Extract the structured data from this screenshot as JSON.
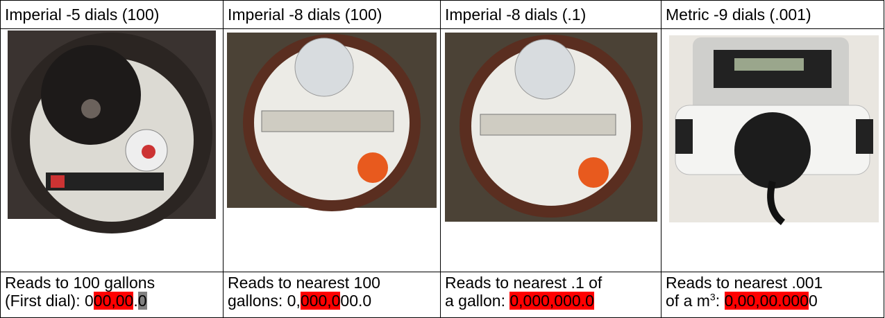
{
  "table": {
    "header": [
      "Imperial -5 dials (100)",
      "Imperial -8 dials (100)",
      "Imperial -8 dials (.1)",
      "Metric -9 dials (.001)"
    ],
    "captions": [
      [
        [
          {
            "text": "Reads to 100 gallons"
          }
        ],
        [
          {
            "text": "(First dial): 0"
          },
          {
            "text": "00,00",
            "highlight": "#ff0000"
          },
          {
            "text": "."
          },
          {
            "text": "0",
            "highlight": "#808080"
          }
        ]
      ],
      [
        [
          {
            "text": "Reads to nearest 100"
          }
        ],
        [
          {
            "text": "gallons: 0,"
          },
          {
            "text": "000,0",
            "highlight": "#ff0000"
          },
          {
            "text": "00.0"
          }
        ]
      ],
      [
        [
          {
            "text": "Reads to nearest .1 of"
          }
        ],
        [
          {
            "text": "a gallon: "
          },
          {
            "text": "0,000,000.0",
            "highlight": "#ff0000"
          }
        ]
      ],
      [
        [
          {
            "text": "Reads to nearest .001"
          }
        ],
        [
          {
            "text": "of a m"
          },
          {
            "text": "3",
            "sup": true
          },
          {
            "text": ": "
          },
          {
            "text": "0,00,00.000",
            "highlight": "#ff0000"
          },
          {
            "text": "0"
          }
        ]
      ]
    ]
  }
}
